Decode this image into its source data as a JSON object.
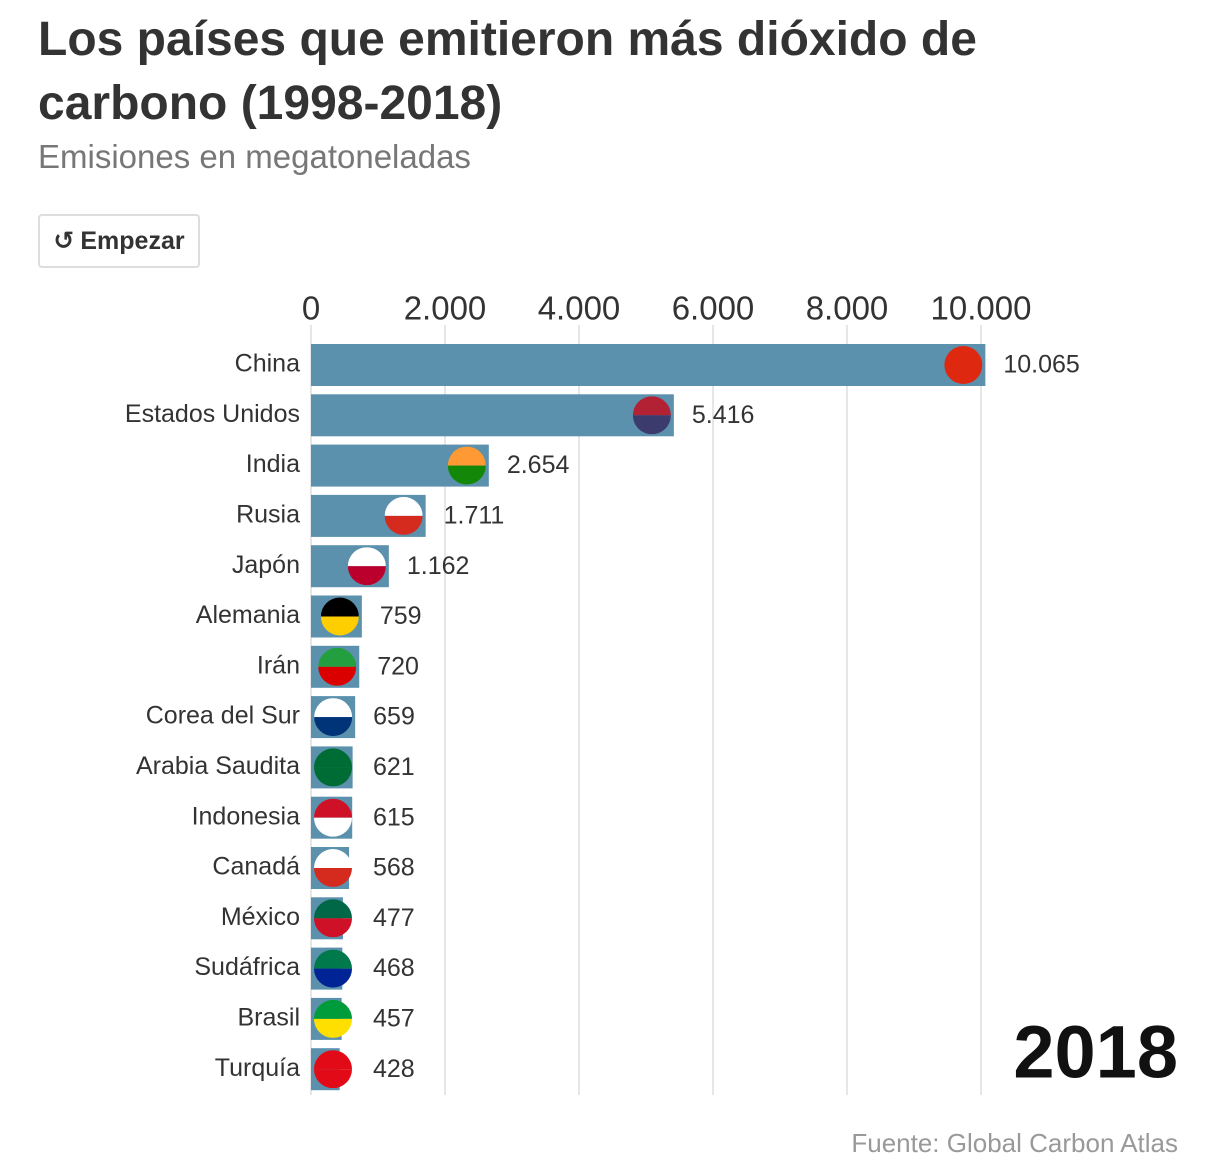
{
  "chart_data": {
    "type": "bar",
    "orientation": "horizontal",
    "title": "Los países que emitieron más dióxido de carbono (1998-2018)",
    "subtitle": "Emisiones en megatoneladas",
    "button": "Empezar",
    "year": "2018",
    "source": "Fuente: Global Carbon Atlas",
    "categories": [
      "China",
      "Estados Unidos",
      "India",
      "Rusia",
      "Japón",
      "Alemania",
      "Irán",
      "Corea del Sur",
      "Arabia Saudita",
      "Indonesia",
      "Canadá",
      "México",
      "Sudáfrica",
      "Brasil",
      "Turquía"
    ],
    "values": [
      10065,
      5416,
      2654,
      1711,
      1162,
      759,
      720,
      659,
      621,
      615,
      568,
      477,
      468,
      457,
      428
    ],
    "value_labels": [
      "10.065",
      "5.416",
      "2.654",
      "1.711",
      "1.162",
      "759",
      "720",
      "659",
      "621",
      "615",
      "568",
      "477",
      "468",
      "457",
      "428"
    ],
    "color": "#5b91ad",
    "xlim": [
      0,
      10000
    ],
    "xticks": [
      0,
      {
        "value": 2000,
        "label": "2.000"
      },
      {
        "value": 4000,
        "label": "4.000"
      },
      {
        "value": 6000,
        "label": "6.000"
      },
      {
        "value": 8000,
        "label": "8.000"
      },
      {
        "value": 10000,
        "label": "10.000"
      }
    ],
    "grid": true
  }
}
